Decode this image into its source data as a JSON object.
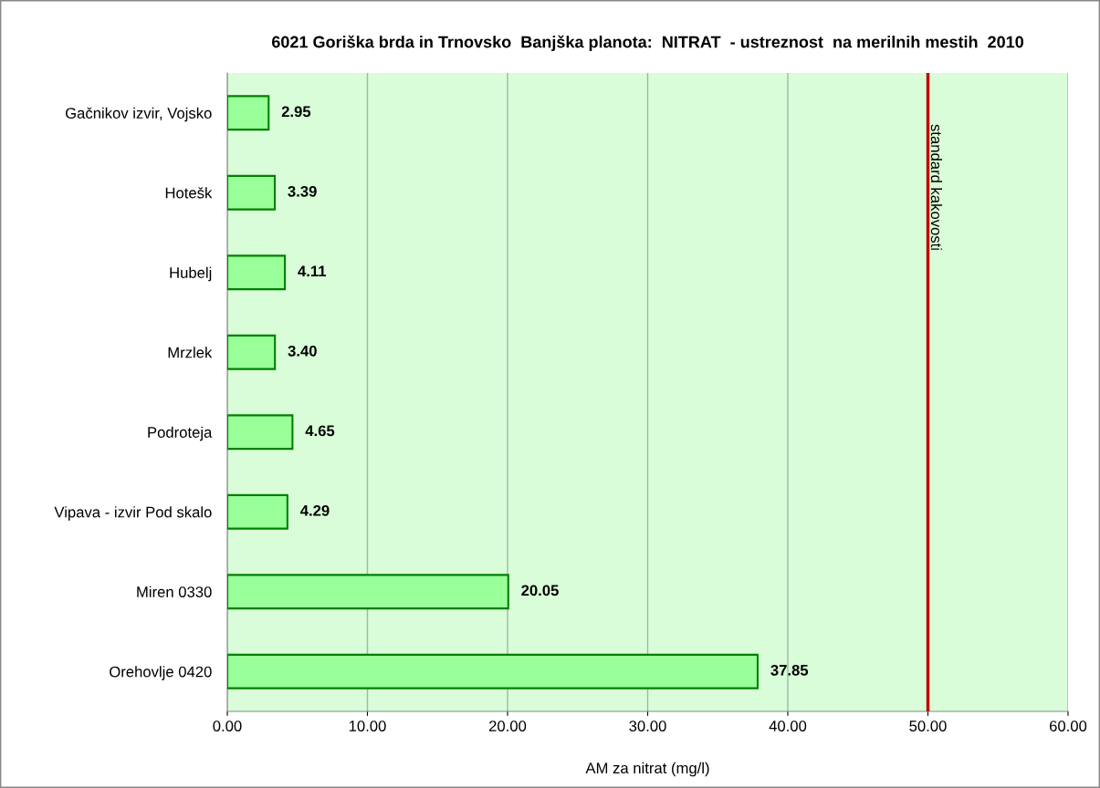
{
  "chart_data": {
    "type": "bar",
    "orientation": "horizontal",
    "title": "6021 Goriška brda in Trnovsko  Banjška planota:  NITRAT  - ustreznost  na merilnih mestih  2010",
    "xlabel": "AM za nitrat (mg/l)",
    "categories": [
      "Gačnikov izvir, Vojsko",
      "Hotešk",
      "Hubelj",
      "Mrzlek",
      "Podroteja",
      "Vipava - izvir Pod skalo",
      "Miren 0330",
      "Orehovlje 0420"
    ],
    "values": [
      2.95,
      3.39,
      4.11,
      3.4,
      4.65,
      4.29,
      20.05,
      37.85
    ],
    "value_labels": [
      "2.95",
      "3.39",
      "4.11",
      "3.40",
      "4.65",
      "4.29",
      "20.05",
      "37.85"
    ],
    "color": "#99ff99",
    "xlim": [
      0,
      60
    ],
    "xticks": [
      {
        "value": 0,
        "label": "0.00"
      },
      {
        "value": 10,
        "label": "10.00"
      },
      {
        "value": 20,
        "label": "20.00"
      },
      {
        "value": 30,
        "label": "30.00"
      },
      {
        "value": 40,
        "label": "40.00"
      },
      {
        "value": 50,
        "label": "50.00"
      },
      {
        "value": 60,
        "label": "60.00"
      }
    ],
    "grid": "x",
    "ref_lines": [
      {
        "axis": "x",
        "value": 50,
        "label": "standard kakovosti",
        "color": "#c00000"
      }
    ]
  }
}
